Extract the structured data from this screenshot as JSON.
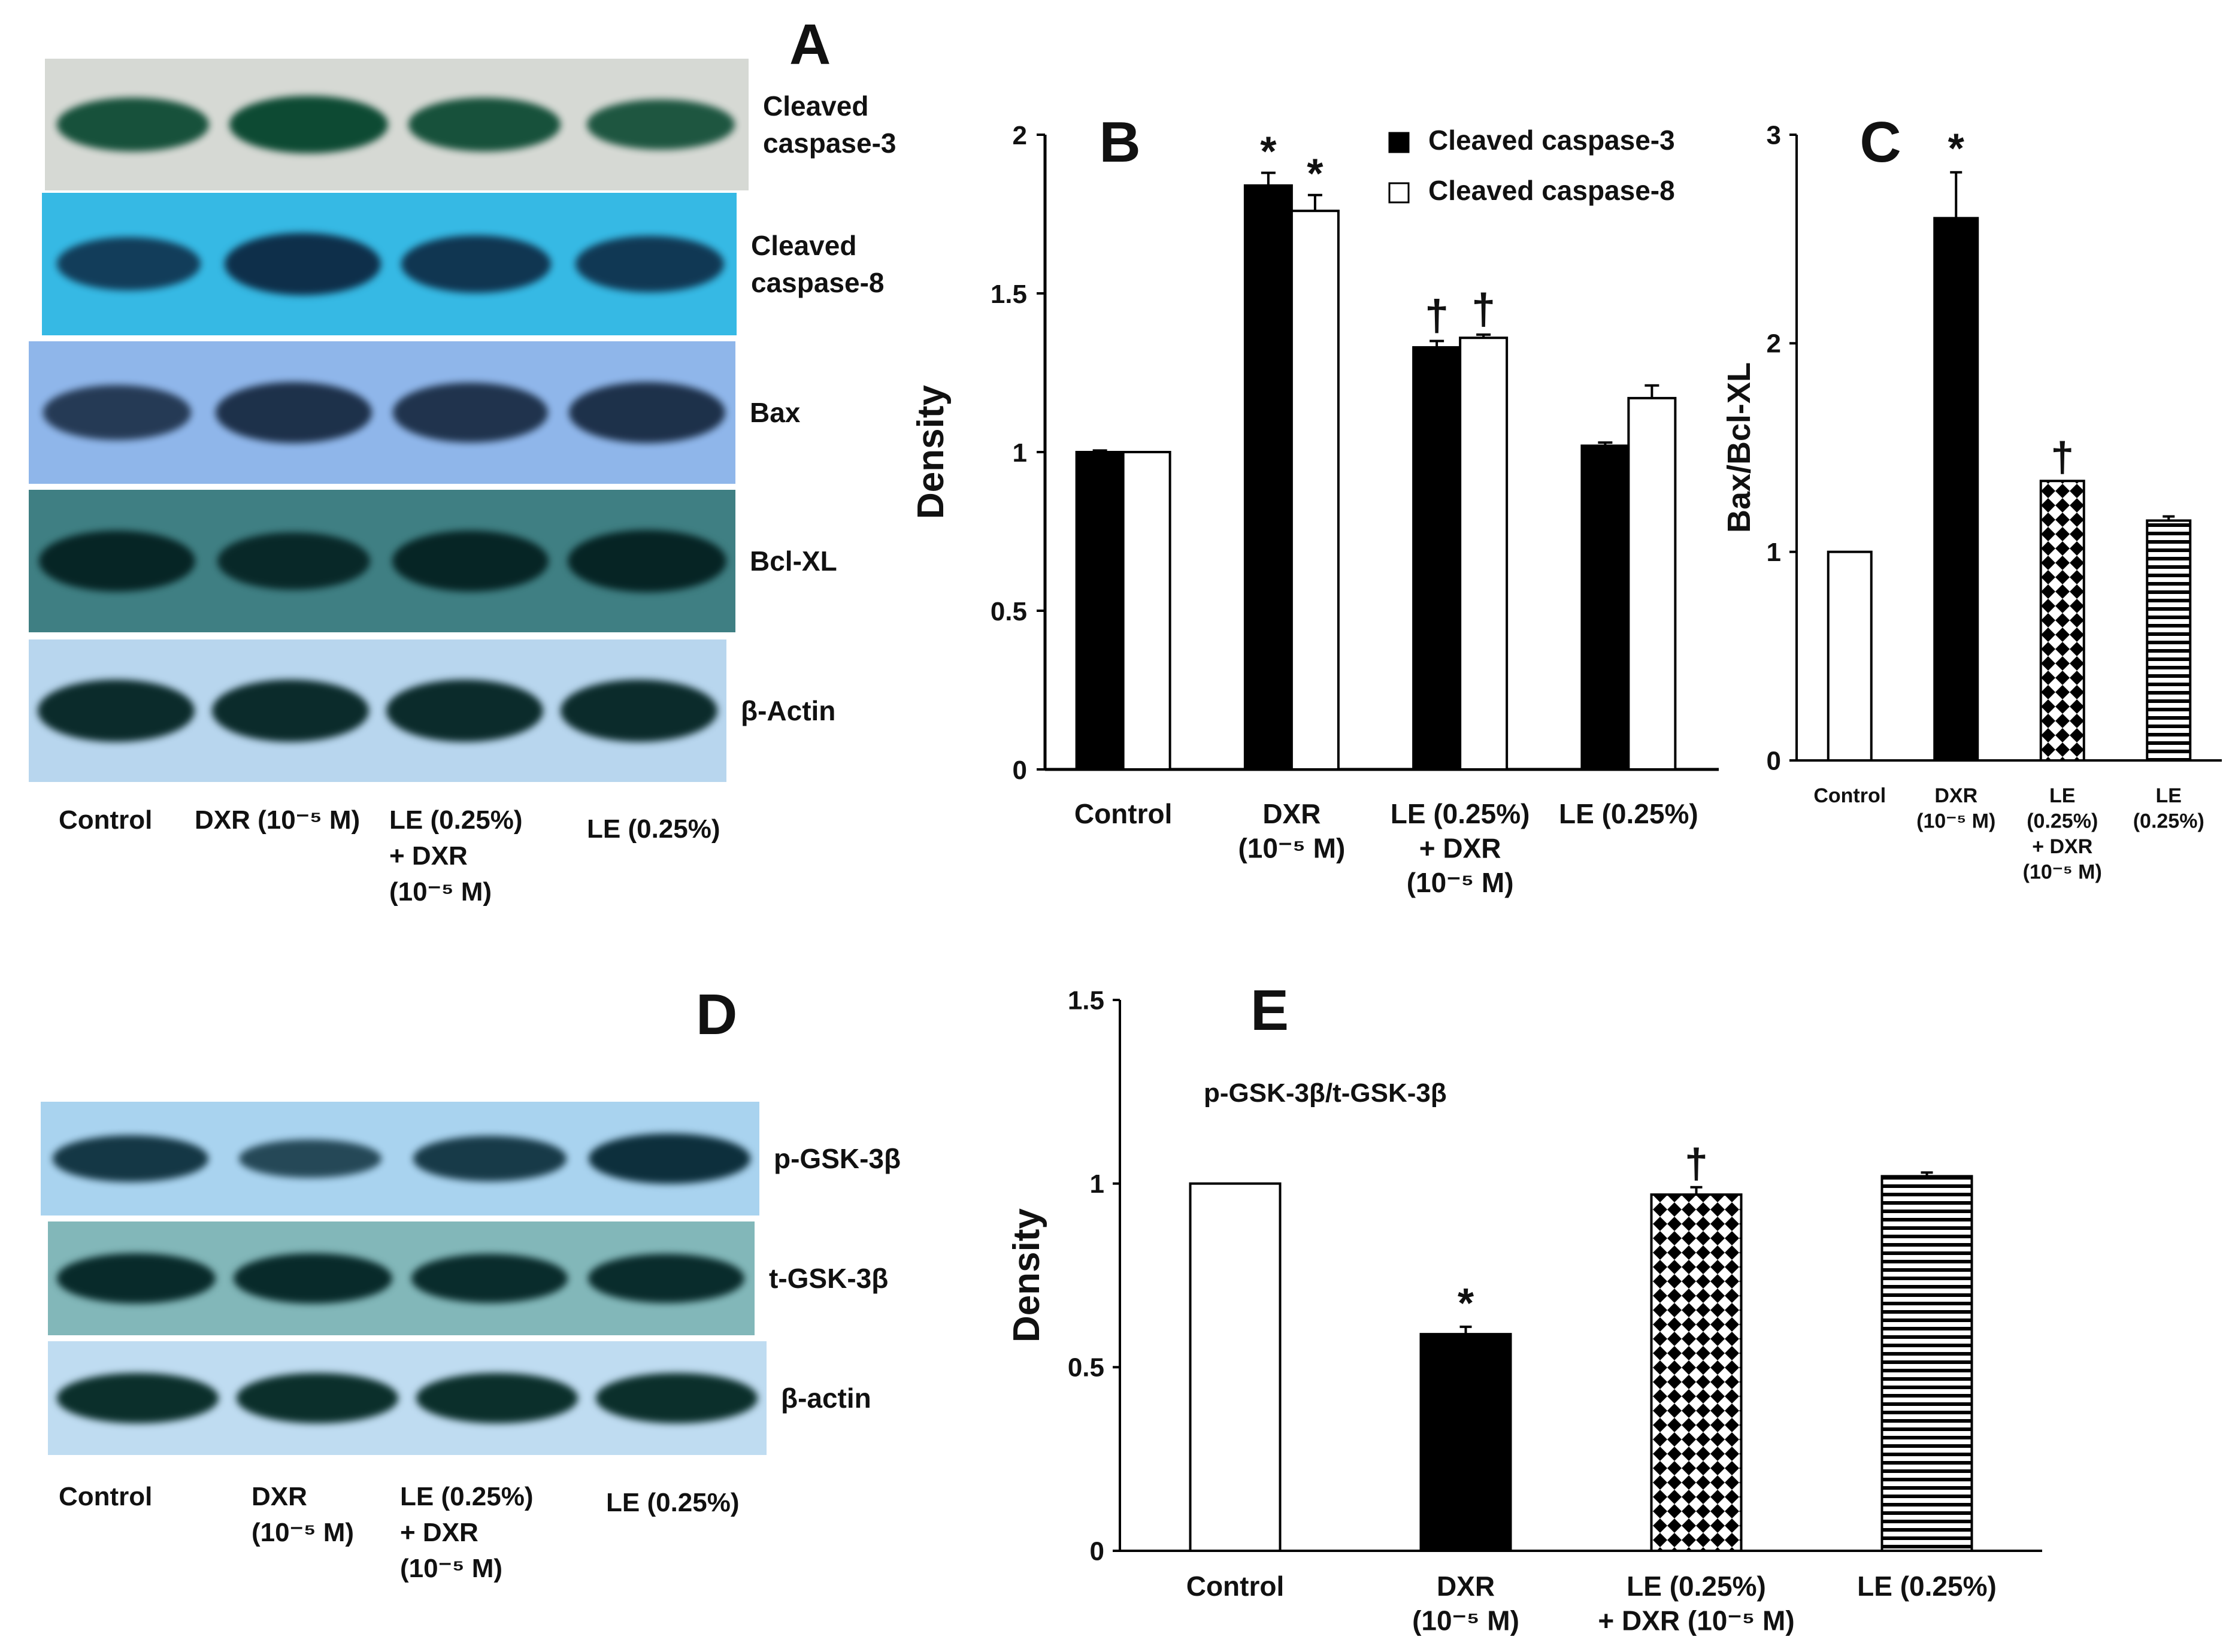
{
  "panels": {
    "A": "A",
    "B": "B",
    "C": "C",
    "D": "D",
    "E": "E"
  },
  "blot_A": {
    "strips": [
      {
        "label": "Cleaved\ncaspase-3",
        "bg": "#d6d9d4",
        "band": "#0d4a33",
        "intensity": [
          0.85,
          1.0,
          0.85,
          0.75
        ]
      },
      {
        "label": "Cleaved\ncaspase-8",
        "bg": "#36b9e4",
        "band": "#0e2f4a",
        "intensity": [
          0.7,
          1.0,
          0.85,
          0.8
        ]
      },
      {
        "label": "Bax",
        "bg": "#8fb6ea",
        "band": "#1c2f48",
        "intensity": [
          0.75,
          0.95,
          0.9,
          0.95
        ]
      },
      {
        "label": "Bcl-XL",
        "bg": "#3f7f83",
        "band": "#062424",
        "intensity": [
          0.95,
          0.85,
          0.95,
          1.0
        ]
      },
      {
        "label": "β-Actin",
        "bg": "#b8d6ee",
        "band": "#0b2b2b",
        "intensity": [
          1.0,
          1.0,
          1.0,
          1.0
        ]
      }
    ],
    "lanes": [
      "Control",
      "DXR (10⁻⁵ M)",
      "LE (0.25%)\n+ DXR\n(10⁻⁵ M)",
      "LE (0.25%)"
    ]
  },
  "blot_D": {
    "strips": [
      {
        "label": "p-GSK-3β",
        "bg": "#a9d3ef",
        "band": "#0d2f3c",
        "intensity": [
          0.85,
          0.55,
          0.8,
          1.0
        ]
      },
      {
        "label": "t-GSK-3β",
        "bg": "#82b7b9",
        "band": "#082a2a",
        "intensity": [
          1.0,
          1.0,
          0.95,
          0.95
        ]
      },
      {
        "label": "β-actin",
        "bg": "#bfdcf1",
        "band": "#0b2f2b",
        "intensity": [
          1.0,
          1.0,
          1.0,
          1.0
        ]
      }
    ],
    "lanes": [
      "Control",
      "DXR\n(10⁻⁵ M)",
      "LE (0.25%)\n+ DXR\n(10⁻⁵ M)",
      "LE (0.25%)"
    ]
  },
  "chart_data": [
    {
      "panel": "B",
      "type": "bar",
      "ylabel": "Density",
      "ylim": [
        0,
        2
      ],
      "yticks": [
        "0",
        "0.5",
        "1",
        "1.5",
        "2"
      ],
      "categories": [
        "Control",
        "DXR\n(10⁻⁵ M)",
        "LE (0.25%)\n+ DXR\n(10⁻⁵ M)",
        "LE (0.25%)"
      ],
      "series": [
        {
          "name": "Cleaved caspase-3",
          "fill": "#000000",
          "values": [
            1.0,
            1.84,
            1.33,
            1.02
          ],
          "errors": [
            0.005,
            0.04,
            0.02,
            0.01
          ]
        },
        {
          "name": "Cleaved caspase-8",
          "fill": "#ffffff",
          "values": [
            1.0,
            1.76,
            1.36,
            1.17
          ],
          "errors": [
            0.0,
            0.05,
            0.01,
            0.04
          ]
        }
      ],
      "annotations": [
        "",
        "*",
        "†",
        ""
      ],
      "legend": "top-right"
    },
    {
      "panel": "C",
      "type": "bar",
      "ylabel": "Bax/Bcl-XL",
      "ylim": [
        0,
        3
      ],
      "yticks": [
        "0",
        "1",
        "2",
        "3"
      ],
      "categories": [
        "Control",
        "DXR\n(10⁻⁵ M)",
        "LE\n(0.25%)\n+ DXR\n(10⁻⁵ M)",
        "LE\n(0.25%)"
      ],
      "values": [
        1.0,
        2.6,
        1.34,
        1.15
      ],
      "errors": [
        0.0,
        0.22,
        0.0,
        0.02
      ],
      "fills": [
        "white",
        "black",
        "diamond",
        "hstripe"
      ],
      "annotations": [
        "",
        "*",
        "†",
        ""
      ]
    },
    {
      "panel": "E",
      "type": "bar",
      "title": "p-GSK-3β/t-GSK-3β",
      "ylabel": "Density",
      "ylim": [
        0,
        1.5
      ],
      "yticks": [
        "0",
        "0.5",
        "1",
        "1.5"
      ],
      "categories": [
        "Control",
        "DXR\n(10⁻⁵ M)",
        "LE (0.25%)\n+ DXR (10⁻⁵ M)",
        "LE (0.25%)"
      ],
      "values": [
        1.0,
        0.59,
        0.97,
        1.02
      ],
      "errors": [
        0.0,
        0.02,
        0.02,
        0.01
      ],
      "fills": [
        "white",
        "black",
        "diamond",
        "hstripe"
      ],
      "annotations": [
        "",
        "*",
        "†",
        ""
      ]
    }
  ]
}
